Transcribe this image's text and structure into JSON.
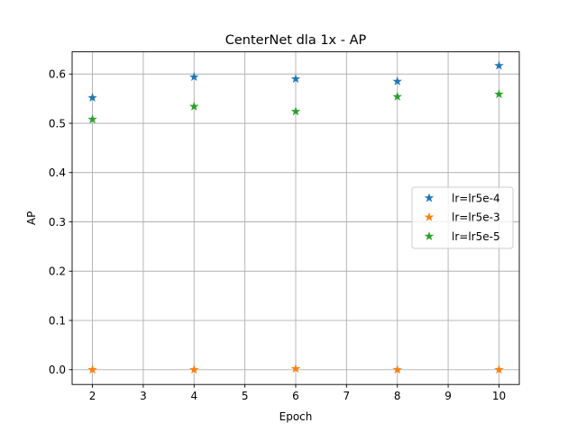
{
  "chart_data": {
    "type": "scatter",
    "title": "CenterNet dla 1x - AP",
    "xlabel": "Epoch",
    "ylabel": "AP",
    "xlim": [
      1.6,
      10.4
    ],
    "ylim": [
      -0.03,
      0.645
    ],
    "x_ticks": [
      2,
      3,
      4,
      5,
      6,
      7,
      8,
      9,
      10
    ],
    "y_ticks": [
      0.0,
      0.1,
      0.2,
      0.3,
      0.4,
      0.5,
      0.6
    ],
    "y_tick_labels": [
      "0.0",
      "0.1",
      "0.2",
      "0.3",
      "0.4",
      "0.5",
      "0.6"
    ],
    "grid": true,
    "legend_position": "center-right",
    "marker": "star",
    "x": [
      2,
      4,
      6,
      8,
      10
    ],
    "series": [
      {
        "name": "lr=lr5e-4",
        "color": "#1f77b4",
        "values": [
          0.552,
          0.594,
          0.59,
          0.585,
          0.617
        ]
      },
      {
        "name": "lr=lr5e-3",
        "color": "#ff7f0e",
        "values": [
          0.0,
          0.0,
          0.002,
          0.0,
          0.0
        ]
      },
      {
        "name": "lr=lr5e-5",
        "color": "#2ca02c",
        "values": [
          0.508,
          0.534,
          0.524,
          0.554,
          0.559
        ]
      }
    ]
  }
}
